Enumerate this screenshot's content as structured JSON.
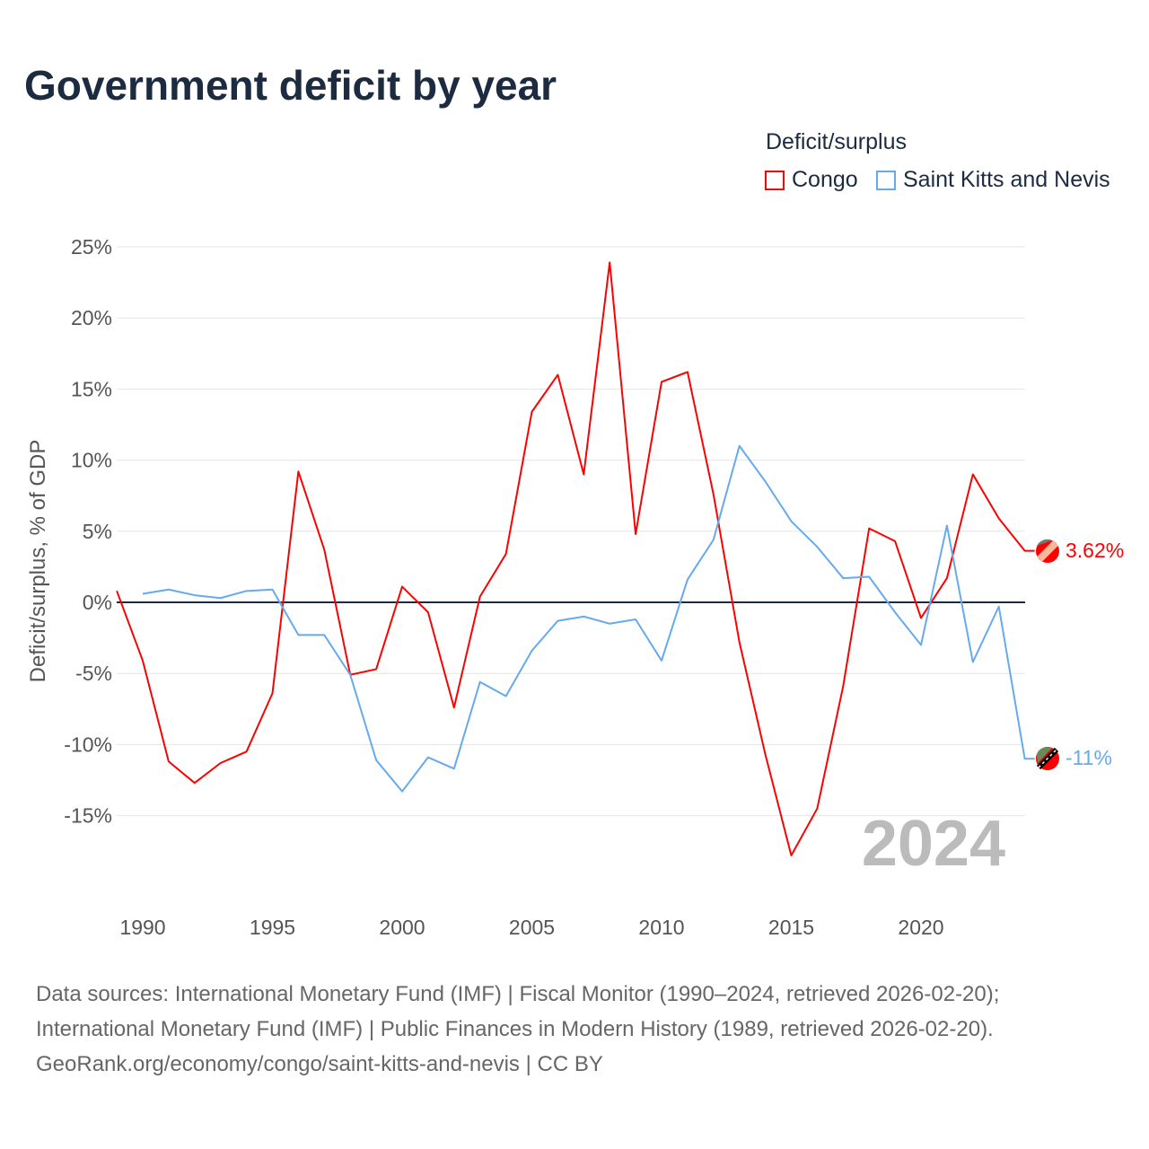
{
  "title": "Government deficit by year",
  "legend": {
    "title": "Deficit/surplus",
    "entries": [
      {
        "name": "Congo",
        "color": "#ff0000"
      },
      {
        "name": "Saint Kitts and Nevis",
        "color": "#66aaee"
      }
    ]
  },
  "year_watermark": "2024",
  "end_labels": {
    "congo": "3.62%",
    "skn": "-11%"
  },
  "sources": [
    "Data sources: International Monetary Fund (IMF) | Fiscal Monitor (1990–2024, retrieved 2026-02-20);",
    "International Monetary Fund (IMF) | Public Finances in Modern History (1989, retrieved 2026-02-20).",
    "GeoRank.org/economy/congo/saint-kitts-and-nevis | CC BY"
  ],
  "chart_data": {
    "type": "line",
    "title": "Government deficit by year",
    "xlabel": "",
    "ylabel": "Deficit/surplus, % of GDP",
    "ylim": [
      -20,
      25
    ],
    "xlim": [
      1989,
      2024
    ],
    "xticks": [
      1990,
      1995,
      2000,
      2005,
      2010,
      2015,
      2020
    ],
    "xtick_labels": [
      "1990",
      "1995",
      "2000",
      "2005",
      "2010",
      "2015",
      "2020"
    ],
    "yticks": [
      -15,
      -10,
      -5,
      0,
      5,
      10,
      15,
      20,
      25
    ],
    "ytick_labels": [
      "-15%",
      "-10%",
      "-5%",
      "0%",
      "5%",
      "10%",
      "15%",
      "20%",
      "25%"
    ],
    "grid": true,
    "legend_position": "top-right",
    "series": [
      {
        "name": "Congo",
        "color": "#ff0000",
        "x": [
          1989,
          1990,
          1991,
          1992,
          1993,
          1994,
          1995,
          1996,
          1997,
          1998,
          1999,
          2000,
          2001,
          2002,
          2003,
          2004,
          2005,
          2006,
          2007,
          2008,
          2009,
          2010,
          2011,
          2012,
          2013,
          2014,
          2015,
          2016,
          2017,
          2018,
          2019,
          2020,
          2021,
          2022,
          2023,
          2024
        ],
        "values": [
          0.8,
          -4.1,
          -11.2,
          -12.7,
          -11.3,
          -10.5,
          -6.4,
          9.2,
          3.7,
          -5.1,
          -4.7,
          1.1,
          -0.7,
          -7.4,
          0.4,
          3.4,
          13.4,
          16.0,
          9.0,
          23.9,
          4.8,
          15.5,
          16.2,
          7.6,
          -2.8,
          -10.7,
          -17.8,
          -14.5,
          -5.9,
          5.2,
          4.3,
          -1.1,
          1.7,
          9.0,
          5.9,
          3.62
        ]
      },
      {
        "name": "Saint Kitts and Nevis",
        "color": "#66aaee",
        "x": [
          1990,
          1991,
          1992,
          1993,
          1994,
          1995,
          1996,
          1997,
          1998,
          1999,
          2000,
          2001,
          2002,
          2003,
          2004,
          2005,
          2006,
          2007,
          2008,
          2009,
          2010,
          2011,
          2012,
          2013,
          2014,
          2015,
          2016,
          2017,
          2018,
          2019,
          2020,
          2021,
          2022,
          2023,
          2024
        ],
        "values": [
          0.6,
          0.9,
          0.5,
          0.3,
          0.8,
          0.9,
          -2.3,
          -2.3,
          -5.1,
          -11.1,
          -13.3,
          -10.9,
          -11.7,
          -5.6,
          -6.6,
          -3.4,
          -1.3,
          -1.0,
          -1.5,
          -1.2,
          -4.1,
          1.6,
          4.4,
          11.0,
          8.5,
          5.7,
          3.9,
          1.7,
          1.8,
          -0.7,
          -3.0,
          5.4,
          -4.2,
          -0.3,
          -11.0
        ]
      }
    ]
  }
}
